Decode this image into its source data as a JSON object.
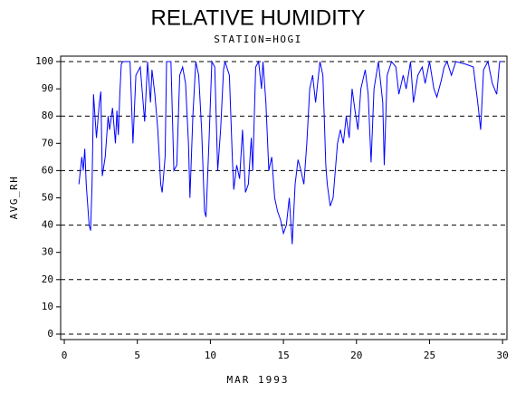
{
  "chart_data": {
    "type": "line",
    "title": "RELATIVE HUMIDITY",
    "subtitle": "STATION=HOGI",
    "x_label": "MAR 1993",
    "y_label": "AVG_RH",
    "xlim": [
      -0.25,
      30.3
    ],
    "ylim": [
      -2,
      102
    ],
    "xticks": [
      0,
      5,
      10,
      15,
      20,
      25,
      30
    ],
    "yticks": [
      0,
      10,
      20,
      30,
      40,
      50,
      60,
      70,
      80,
      90,
      100
    ],
    "grid_values": [
      0,
      20,
      40,
      60,
      80,
      100
    ],
    "series": [
      {
        "name": "AVG_RH",
        "color": "#0000ff",
        "x": [
          1.0,
          1.2,
          1.3,
          1.4,
          1.5,
          1.7,
          1.8,
          1.9,
          2.0,
          2.2,
          2.4,
          2.5,
          2.6,
          2.8,
          3.0,
          3.1,
          3.3,
          3.5,
          3.6,
          3.7,
          3.8,
          3.9,
          4.0,
          4.5,
          4.7,
          4.9,
          5.2,
          5.5,
          5.7,
          5.9,
          6.0,
          6.2,
          6.4,
          6.6,
          6.7,
          6.9,
          7.0,
          7.3,
          7.5,
          7.7,
          7.9,
          8.1,
          8.3,
          8.5,
          8.6,
          8.8,
          9.0,
          9.2,
          9.4,
          9.6,
          9.7,
          9.9,
          10.1,
          10.3,
          10.5,
          10.7,
          10.9,
          11.0,
          11.3,
          11.5,
          11.6,
          11.8,
          12.0,
          12.2,
          12.4,
          12.6,
          12.8,
          12.9,
          13.1,
          13.3,
          13.5,
          13.6,
          13.8,
          14.0,
          14.2,
          14.4,
          14.6,
          14.8,
          15.0,
          15.2,
          15.4,
          15.6,
          15.8,
          16.0,
          16.2,
          16.4,
          16.6,
          16.8,
          17.0,
          17.2,
          17.5,
          17.7,
          17.9,
          18.0,
          18.2,
          18.4,
          18.7,
          18.9,
          19.1,
          19.3,
          19.5,
          19.7,
          19.9,
          20.1,
          20.3,
          20.6,
          20.8,
          21.0,
          21.2,
          21.5,
          21.8,
          21.9,
          22.1,
          22.4,
          22.7,
          22.9,
          23.2,
          23.4,
          23.7,
          23.9,
          24.2,
          24.5,
          24.7,
          25.0,
          25.3,
          25.5,
          25.8,
          26.0,
          26.2,
          26.5,
          26.8,
          27.5,
          28.0,
          28.3,
          28.5,
          28.7,
          29.0,
          29.3,
          29.6,
          29.8,
          30.0
        ],
        "values": [
          55,
          65,
          60,
          68,
          55,
          40,
          38,
          55,
          88,
          72,
          85,
          89,
          58,
          65,
          80,
          75,
          83,
          70,
          82,
          73,
          88,
          99,
          100,
          100,
          70,
          95,
          98,
          78,
          100,
          85,
          97,
          88,
          75,
          55,
          52,
          65,
          100,
          100,
          60,
          62,
          95,
          98,
          92,
          70,
          50,
          80,
          100,
          95,
          75,
          45,
          43,
          70,
          100,
          98,
          60,
          75,
          97,
          100,
          95,
          65,
          53,
          62,
          57,
          75,
          52,
          55,
          72,
          60,
          98,
          100,
          90,
          100,
          85,
          60,
          65,
          50,
          45,
          42,
          37,
          40,
          50,
          33,
          55,
          64,
          60,
          55,
          70,
          90,
          95,
          85,
          100,
          95,
          62,
          55,
          47,
          50,
          70,
          75,
          70,
          80,
          72,
          90,
          82,
          75,
          90,
          97,
          88,
          63,
          90,
          100,
          85,
          62,
          95,
          100,
          98,
          88,
          95,
          90,
          100,
          85,
          95,
          98,
          92,
          100,
          90,
          87,
          93,
          98,
          100,
          95,
          100,
          99,
          98,
          85,
          75,
          97,
          100,
          92,
          88,
          100,
          100
        ]
      }
    ]
  }
}
